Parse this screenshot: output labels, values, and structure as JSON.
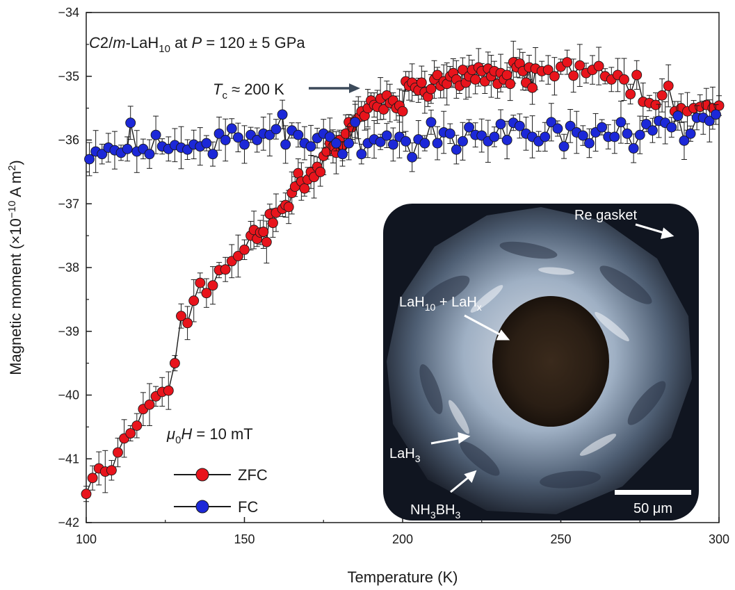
{
  "chart_data": {
    "type": "scatter",
    "title": "",
    "xlabel": "Temperature (K)",
    "ylabel": "Magnetic moment (×10⁻¹⁰ A m²)",
    "xlim": [
      100,
      300
    ],
    "ylim": [
      -42,
      -34
    ],
    "xticks": [
      "100",
      "150",
      "200",
      "250",
      "300"
    ],
    "yticks": [
      "−34",
      "−35",
      "−36",
      "−37",
      "−38",
      "−39",
      "−40",
      "−41",
      "−42"
    ],
    "grid": false,
    "legend_position": "bottom-left",
    "annotations": {
      "sample": "C2/m-LaH10 at P = 120 ± 5 GPa",
      "tc": "Tc ≈ 200 K",
      "field": "μ0H = 10 mT"
    },
    "inset": {
      "labels": [
        "Re gasket",
        "LaH10 + LaHx",
        "LaH3",
        "NH3BH3",
        "50 μm"
      ]
    },
    "series": [
      {
        "name": "ZFC",
        "color": "#e8141c",
        "points": [
          [
            100,
            -41.55
          ],
          [
            102,
            -41.3
          ],
          [
            104,
            -41.15
          ],
          [
            106,
            -41.2
          ],
          [
            108,
            -41.18
          ],
          [
            110,
            -40.9
          ],
          [
            112,
            -40.68
          ],
          [
            114,
            -40.6
          ],
          [
            116,
            -40.48
          ],
          [
            118,
            -40.22
          ],
          [
            120,
            -40.15
          ],
          [
            122,
            -40.02
          ],
          [
            124,
            -39.95
          ],
          [
            126,
            -39.93
          ],
          [
            128,
            -39.5
          ],
          [
            130,
            -38.76
          ],
          [
            132,
            -38.87
          ],
          [
            134,
            -38.52
          ],
          [
            136,
            -38.24
          ],
          [
            138,
            -38.4
          ],
          [
            140,
            -38.28
          ],
          [
            142,
            -38.04
          ],
          [
            144,
            -38.03
          ],
          [
            146,
            -37.9
          ],
          [
            148,
            -37.82
          ],
          [
            150,
            -37.72
          ],
          [
            152,
            -37.5
          ],
          [
            153,
            -37.41
          ],
          [
            154,
            -37.55
          ],
          [
            155,
            -37.45
          ],
          [
            156,
            -37.44
          ],
          [
            157,
            -37.6
          ],
          [
            158,
            -37.16
          ],
          [
            159,
            -37.3
          ],
          [
            160,
            -37.14
          ],
          [
            162,
            -37.08
          ],
          [
            163,
            -37.02
          ],
          [
            164,
            -37.05
          ],
          [
            165,
            -36.83
          ],
          [
            166,
            -36.73
          ],
          [
            167,
            -36.52
          ],
          [
            168,
            -36.65
          ],
          [
            169,
            -36.76
          ],
          [
            170,
            -36.62
          ],
          [
            171,
            -36.5
          ],
          [
            172,
            -36.58
          ],
          [
            173,
            -36.42
          ],
          [
            174,
            -36.5
          ],
          [
            175,
            -36.25
          ],
          [
            176,
            -36.18
          ],
          [
            177,
            -36.05
          ],
          [
            178,
            -36.1
          ],
          [
            179,
            -36.2
          ],
          [
            180,
            -36.0
          ],
          [
            181,
            -36.1
          ],
          [
            182,
            -35.9
          ],
          [
            183,
            -35.72
          ],
          [
            184,
            -35.8
          ],
          [
            185,
            -35.7
          ],
          [
            186,
            -35.65
          ],
          [
            187,
            -35.55
          ],
          [
            188,
            -35.62
          ],
          [
            189,
            -35.5
          ],
          [
            190,
            -35.38
          ],
          [
            191,
            -35.45
          ],
          [
            192,
            -35.48
          ],
          [
            193,
            -35.35
          ],
          [
            194,
            -35.52
          ],
          [
            195,
            -35.3
          ],
          [
            196,
            -35.42
          ],
          [
            197,
            -35.38
          ],
          [
            198,
            -35.5
          ],
          [
            199,
            -35.46
          ],
          [
            200,
            -35.55
          ],
          [
            201,
            -35.08
          ],
          [
            202,
            -35.15
          ],
          [
            203,
            -35.1
          ],
          [
            204,
            -35.18
          ],
          [
            205,
            -35.22
          ],
          [
            206,
            -35.1
          ],
          [
            207,
            -35.25
          ],
          [
            208,
            -35.32
          ],
          [
            209,
            -35.2
          ],
          [
            210,
            -35.05
          ],
          [
            211,
            -34.98
          ],
          [
            212,
            -35.15
          ],
          [
            213,
            -35.08
          ],
          [
            214,
            -35.12
          ],
          [
            215,
            -35.0
          ],
          [
            216,
            -34.95
          ],
          [
            217,
            -35.05
          ],
          [
            218,
            -35.15
          ],
          [
            219,
            -34.9
          ],
          [
            220,
            -35.1
          ],
          [
            221,
            -35.0
          ],
          [
            222,
            -34.9
          ],
          [
            223,
            -35.05
          ],
          [
            224,
            -34.86
          ],
          [
            225,
            -34.92
          ],
          [
            226,
            -35.08
          ],
          [
            227,
            -34.88
          ],
          [
            228,
            -35.0
          ],
          [
            229,
            -34.92
          ],
          [
            230,
            -35.12
          ],
          [
            231,
            -34.95
          ],
          [
            232,
            -35.05
          ],
          [
            233,
            -34.98
          ],
          [
            234,
            -35.12
          ],
          [
            235,
            -34.78
          ],
          [
            236,
            -34.86
          ],
          [
            237,
            -34.8
          ],
          [
            238,
            -34.92
          ],
          [
            239,
            -35.1
          ],
          [
            240,
            -34.86
          ],
          [
            241,
            -35.18
          ],
          [
            242,
            -34.88
          ],
          [
            244,
            -34.92
          ],
          [
            246,
            -34.9
          ],
          [
            248,
            -35.0
          ],
          [
            250,
            -34.85
          ],
          [
            252,
            -34.78
          ],
          [
            254,
            -34.99
          ],
          [
            256,
            -34.83
          ],
          [
            258,
            -34.95
          ],
          [
            260,
            -34.9
          ],
          [
            262,
            -34.84
          ],
          [
            264,
            -35.0
          ],
          [
            266,
            -35.05
          ],
          [
            268,
            -34.98
          ],
          [
            270,
            -35.05
          ],
          [
            272,
            -35.28
          ],
          [
            274,
            -34.98
          ],
          [
            276,
            -35.4
          ],
          [
            278,
            -35.42
          ],
          [
            280,
            -35.45
          ],
          [
            282,
            -35.3
          ],
          [
            284,
            -35.15
          ],
          [
            286,
            -35.55
          ],
          [
            288,
            -35.5
          ],
          [
            290,
            -35.55
          ],
          [
            292,
            -35.5
          ],
          [
            294,
            -35.48
          ],
          [
            296,
            -35.45
          ],
          [
            298,
            -35.5
          ],
          [
            300,
            -35.46
          ]
        ]
      },
      {
        "name": "FC",
        "color": "#1c28d8",
        "points": [
          [
            101,
            -36.3
          ],
          [
            103,
            -36.18
          ],
          [
            105,
            -36.22
          ],
          [
            107,
            -36.12
          ],
          [
            109,
            -36.16
          ],
          [
            111,
            -36.2
          ],
          [
            113,
            -36.14
          ],
          [
            114,
            -35.73
          ],
          [
            116,
            -36.18
          ],
          [
            118,
            -36.14
          ],
          [
            120,
            -36.22
          ],
          [
            122,
            -35.92
          ],
          [
            124,
            -36.1
          ],
          [
            126,
            -36.14
          ],
          [
            128,
            -36.08
          ],
          [
            130,
            -36.12
          ],
          [
            132,
            -36.15
          ],
          [
            134,
            -36.07
          ],
          [
            136,
            -36.1
          ],
          [
            138,
            -36.05
          ],
          [
            140,
            -36.22
          ],
          [
            142,
            -35.9
          ],
          [
            144,
            -36.0
          ],
          [
            146,
            -35.82
          ],
          [
            148,
            -35.96
          ],
          [
            150,
            -36.07
          ],
          [
            152,
            -35.92
          ],
          [
            154,
            -36.0
          ],
          [
            156,
            -35.9
          ],
          [
            158,
            -35.92
          ],
          [
            160,
            -35.83
          ],
          [
            162,
            -35.6
          ],
          [
            163,
            -36.07
          ],
          [
            165,
            -35.85
          ],
          [
            167,
            -35.92
          ],
          [
            169,
            -36.05
          ],
          [
            171,
            -36.1
          ],
          [
            173,
            -35.97
          ],
          [
            175,
            -35.9
          ],
          [
            177,
            -35.95
          ],
          [
            179,
            -36.05
          ],
          [
            181,
            -36.22
          ],
          [
            183,
            -36.05
          ],
          [
            185,
            -35.72
          ],
          [
            187,
            -36.22
          ],
          [
            189,
            -36.05
          ],
          [
            191,
            -35.99
          ],
          [
            193,
            -36.03
          ],
          [
            195,
            -35.93
          ],
          [
            197,
            -36.07
          ],
          [
            199,
            -35.95
          ],
          [
            201,
            -36.02
          ],
          [
            203,
            -36.27
          ],
          [
            205,
            -35.99
          ],
          [
            207,
            -36.05
          ],
          [
            209,
            -35.72
          ],
          [
            211,
            -36.05
          ],
          [
            213,
            -35.88
          ],
          [
            215,
            -35.9
          ],
          [
            217,
            -36.15
          ],
          [
            219,
            -36.02
          ],
          [
            221,
            -35.8
          ],
          [
            223,
            -35.92
          ],
          [
            225,
            -35.93
          ],
          [
            227,
            -36.02
          ],
          [
            229,
            -35.95
          ],
          [
            231,
            -35.75
          ],
          [
            233,
            -36.0
          ],
          [
            235,
            -35.73
          ],
          [
            237,
            -35.78
          ],
          [
            239,
            -35.9
          ],
          [
            241,
            -35.95
          ],
          [
            243,
            -36.02
          ],
          [
            245,
            -35.95
          ],
          [
            247,
            -35.72
          ],
          [
            249,
            -35.82
          ],
          [
            251,
            -36.1
          ],
          [
            253,
            -35.78
          ],
          [
            255,
            -35.88
          ],
          [
            257,
            -35.93
          ],
          [
            259,
            -36.05
          ],
          [
            261,
            -35.88
          ],
          [
            263,
            -35.8
          ],
          [
            265,
            -35.95
          ],
          [
            267,
            -35.95
          ],
          [
            269,
            -35.72
          ],
          [
            271,
            -35.9
          ],
          [
            273,
            -36.13
          ],
          [
            275,
            -35.92
          ],
          [
            277,
            -35.75
          ],
          [
            279,
            -35.85
          ],
          [
            281,
            -35.7
          ],
          [
            283,
            -35.73
          ],
          [
            285,
            -35.8
          ],
          [
            287,
            -35.62
          ],
          [
            289,
            -36.01
          ],
          [
            291,
            -35.9
          ],
          [
            293,
            -35.65
          ],
          [
            295,
            -35.65
          ],
          [
            297,
            -35.7
          ],
          [
            299,
            -35.6
          ]
        ]
      }
    ]
  }
}
